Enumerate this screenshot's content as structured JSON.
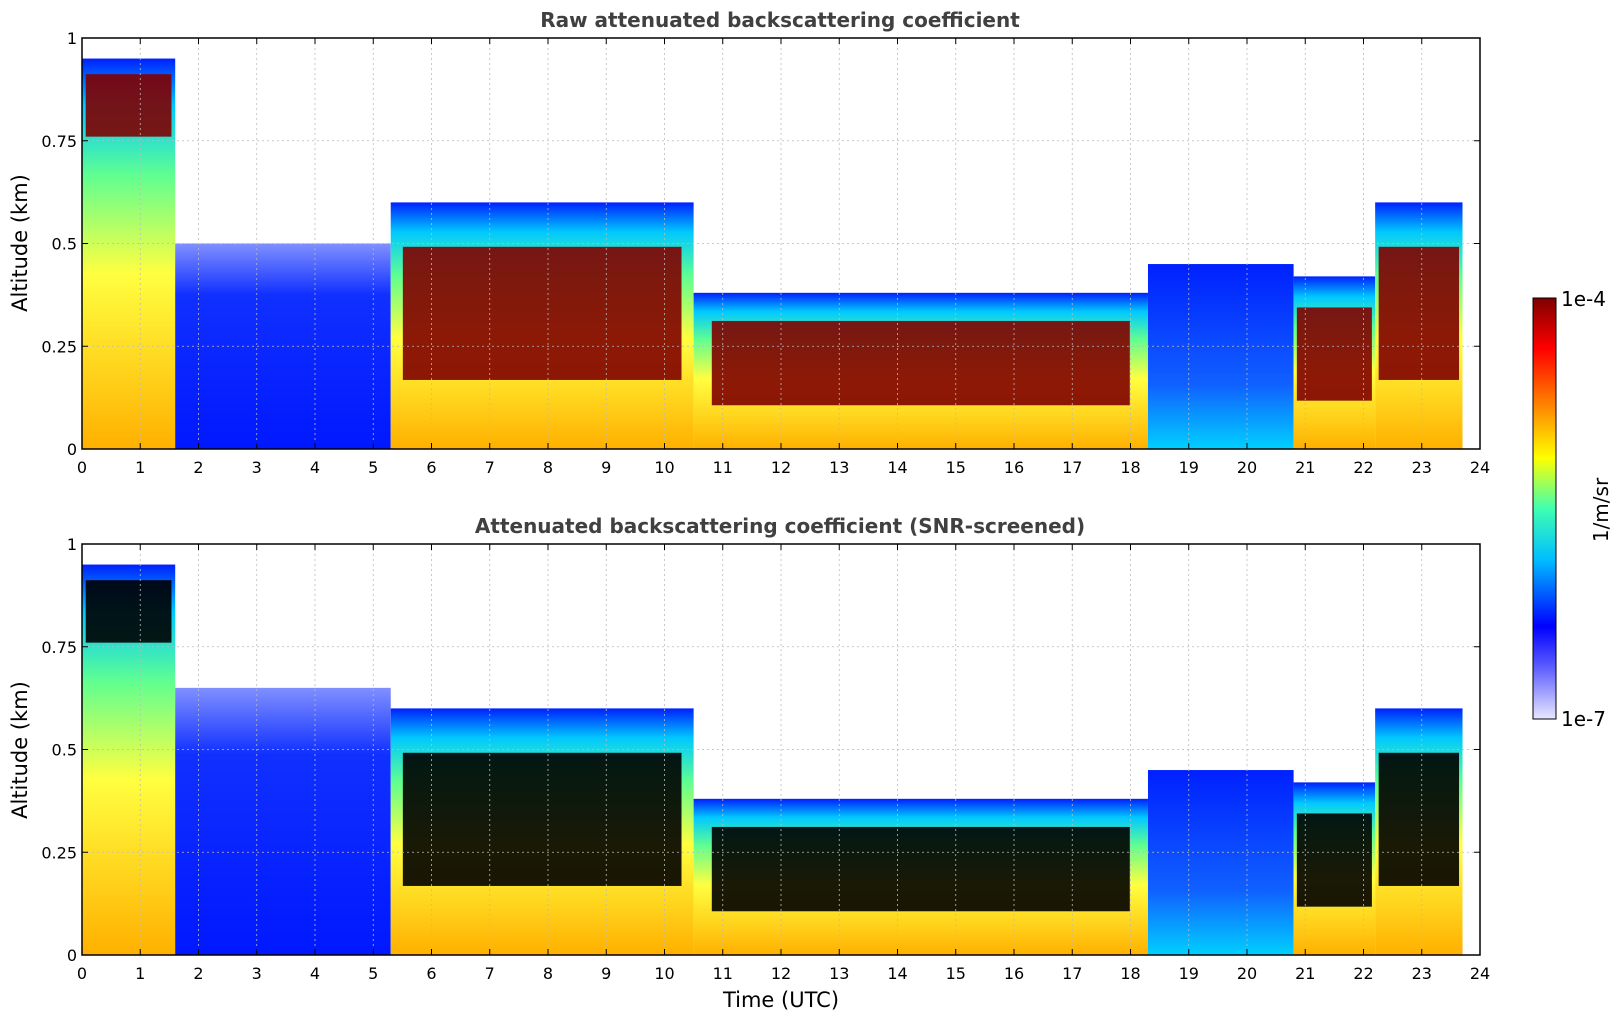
{
  "chart_data": [
    {
      "type": "heatmap",
      "title": "Raw attenuated backscattering coefficient",
      "xlabel": "",
      "ylabel": "Altitude (km)",
      "xlim": [
        0,
        24
      ],
      "ylim": [
        0,
        1
      ],
      "xticks": [
        "0",
        "1",
        "2",
        "3",
        "4",
        "5",
        "6",
        "7",
        "8",
        "9",
        "10",
        "11",
        "12",
        "13",
        "14",
        "15",
        "16",
        "17",
        "18",
        "19",
        "20",
        "21",
        "22",
        "23",
        "24"
      ],
      "yticks": [
        "0",
        "0.25",
        "0.5",
        "0.75",
        "1"
      ],
      "grid": true,
      "saturated_color": "#7f0000",
      "regions": [
        {
          "x": [
            0.0,
            1.6
          ],
          "ylim": [
            0,
            0.95
          ],
          "level": "high"
        },
        {
          "x": [
            1.6,
            5.3
          ],
          "ylim": [
            0,
            0.5
          ],
          "level": "low"
        },
        {
          "x": [
            5.3,
            10.5
          ],
          "ylim": [
            0,
            0.6
          ],
          "level": "high"
        },
        {
          "x": [
            10.5,
            18.3
          ],
          "ylim": [
            0,
            0.38
          ],
          "level": "high"
        },
        {
          "x": [
            18.3,
            20.8
          ],
          "ylim": [
            0,
            0.45
          ],
          "level": "medium"
        },
        {
          "x": [
            20.8,
            22.2
          ],
          "ylim": [
            0,
            0.42
          ],
          "level": "high"
        },
        {
          "x": [
            22.2,
            23.7
          ],
          "ylim": [
            0,
            0.6
          ],
          "level": "high"
        }
      ]
    },
    {
      "type": "heatmap",
      "title": "Attenuated backscattering coefficient (SNR-screened)",
      "xlabel": "Time (UTC)",
      "ylabel": "Altitude (km)",
      "xlim": [
        0,
        24
      ],
      "ylim": [
        0,
        1
      ],
      "xticks": [
        "0",
        "1",
        "2",
        "3",
        "4",
        "5",
        "6",
        "7",
        "8",
        "9",
        "10",
        "11",
        "12",
        "13",
        "14",
        "15",
        "16",
        "17",
        "18",
        "19",
        "20",
        "21",
        "22",
        "23",
        "24"
      ],
      "yticks": [
        "0",
        "0.25",
        "0.5",
        "0.75",
        "1"
      ],
      "grid": true,
      "saturated_color": "#000000",
      "regions": [
        {
          "x": [
            0.0,
            1.6
          ],
          "ylim": [
            0,
            0.95
          ],
          "level": "high"
        },
        {
          "x": [
            1.6,
            5.3
          ],
          "ylim": [
            0,
            0.65
          ],
          "level": "low"
        },
        {
          "x": [
            5.3,
            10.5
          ],
          "ylim": [
            0,
            0.6
          ],
          "level": "high"
        },
        {
          "x": [
            10.5,
            18.3
          ],
          "ylim": [
            0,
            0.38
          ],
          "level": "high"
        },
        {
          "x": [
            18.3,
            20.8
          ],
          "ylim": [
            0,
            0.45
          ],
          "level": "medium"
        },
        {
          "x": [
            20.8,
            22.2
          ],
          "ylim": [
            0,
            0.42
          ],
          "level": "high"
        },
        {
          "x": [
            22.2,
            23.7
          ],
          "ylim": [
            0,
            0.6
          ],
          "level": "high"
        }
      ]
    }
  ],
  "colorbar": {
    "label": "1/m/sr",
    "max_label": "1e-4",
    "min_label": "1e-7",
    "scale": "log",
    "colors": [
      "#e8e8ff",
      "#0000ff",
      "#00bfff",
      "#40ffb0",
      "#ffff00",
      "#ff8000",
      "#ff0000",
      "#7f0000"
    ]
  }
}
